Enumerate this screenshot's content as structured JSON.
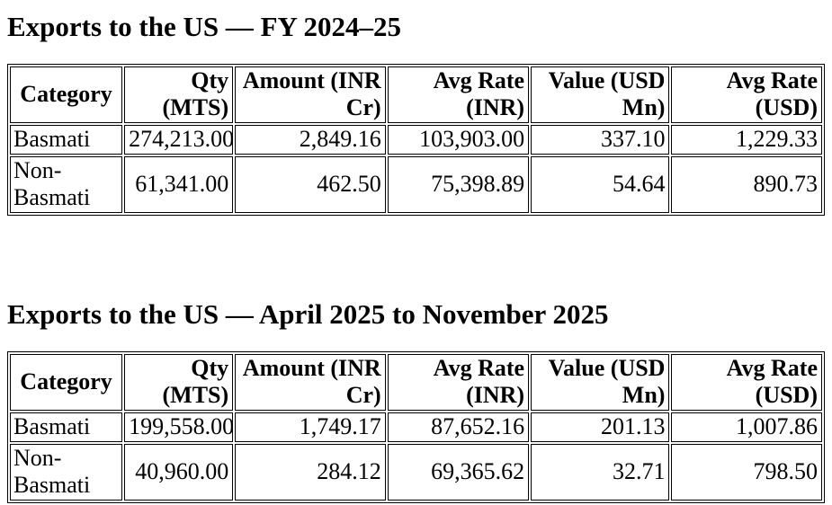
{
  "page": {
    "background": "#ffffff",
    "text_color": "#000000",
    "table_border_color": "#000000"
  },
  "columns": [
    {
      "label": "Category",
      "align": "center"
    },
    {
      "label": "Qty\n(MTS)",
      "align": "right"
    },
    {
      "label": "Amount (INR\nCr)",
      "align": "right"
    },
    {
      "label": "Avg Rate\n(INR)",
      "align": "right"
    },
    {
      "label": "Value (USD\nMn)",
      "align": "right"
    },
    {
      "label": "Avg Rate\n(USD)",
      "align": "right"
    }
  ],
  "tables": [
    {
      "title": "Exports to the US — FY 2024–25",
      "rows": [
        {
          "cells": [
            "Basmati",
            "274,213.00",
            "2,849.16",
            "103,903.00",
            "337.10",
            "1,229.33"
          ]
        },
        {
          "cells": [
            "Non-\nBasmati",
            "61,341.00",
            "462.50",
            "75,398.89",
            "54.64",
            "890.73"
          ]
        }
      ]
    },
    {
      "title": "Exports to the US — April 2025 to November 2025",
      "rows": [
        {
          "cells": [
            "Basmati",
            "199,558.00",
            "1,749.17",
            "87,652.16",
            "201.13",
            "1,007.86"
          ]
        },
        {
          "cells": [
            "Non-\nBasmati",
            "40,960.00",
            "284.12",
            "69,365.62",
            "32.71",
            "798.50"
          ]
        }
      ]
    }
  ]
}
